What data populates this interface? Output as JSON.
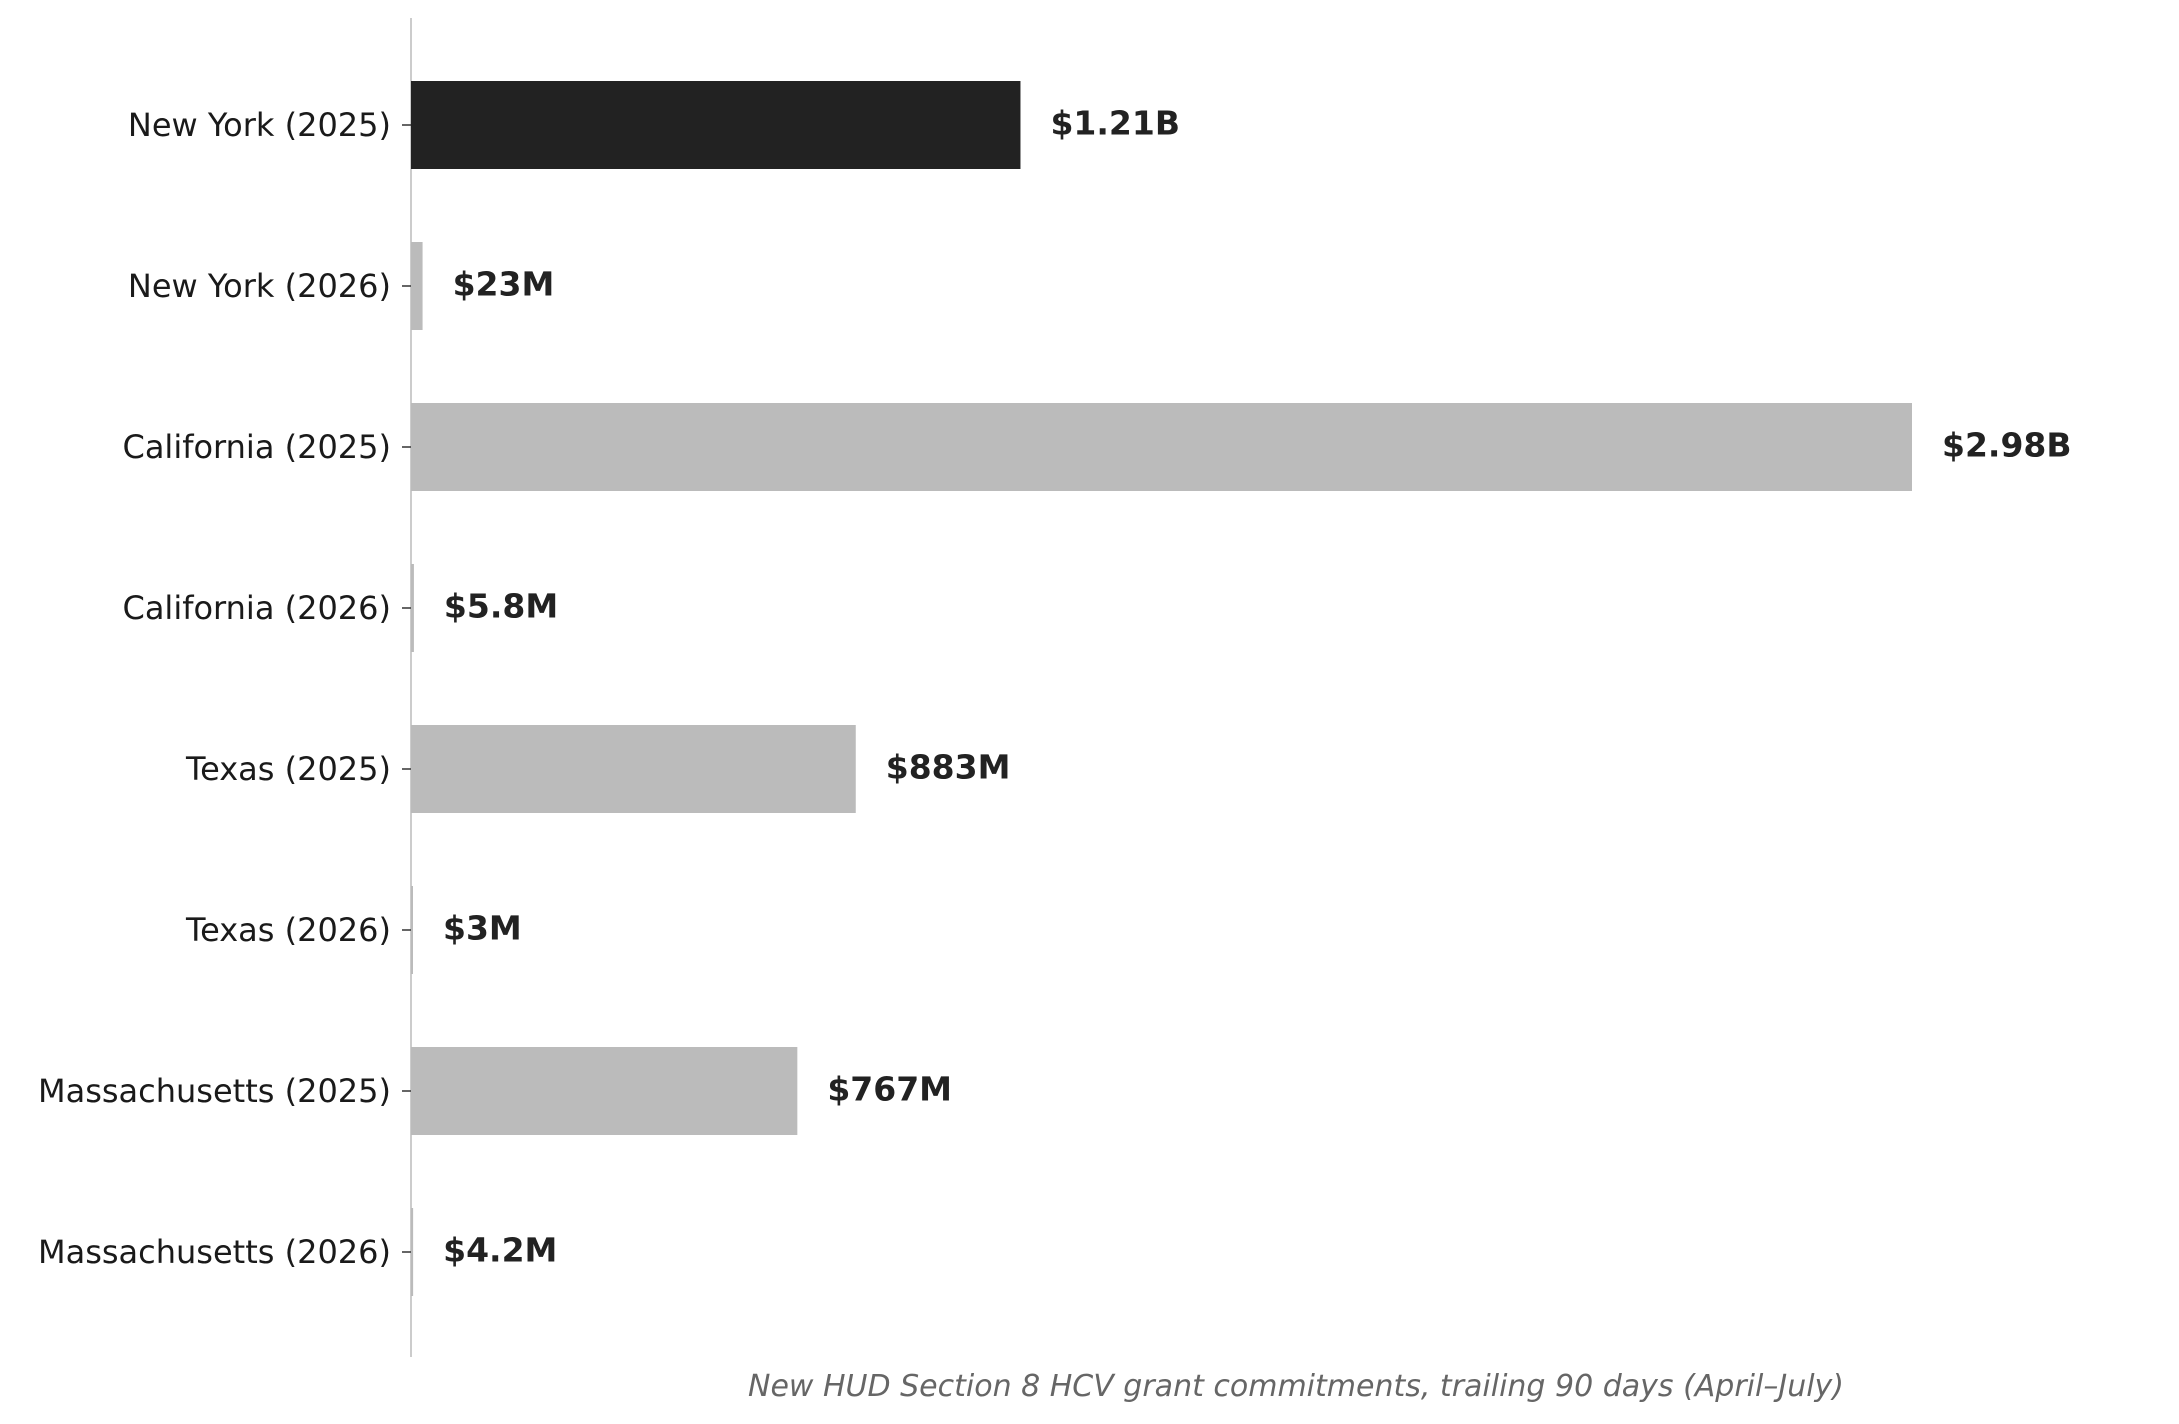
{
  "chart_data": {
    "type": "bar",
    "orientation": "horizontal",
    "categories": [
      "New York (2025)",
      "New York (2026)",
      "California (2025)",
      "California (2026)",
      "Texas (2025)",
      "Texas (2026)",
      "Massachusetts (2025)",
      "Massachusetts (2026)"
    ],
    "values": [
      1210000000,
      23000000,
      2980000000,
      5800000,
      883000000,
      3000000,
      767000000,
      4200000
    ],
    "value_labels": [
      "$1.21B",
      "$23M",
      "$2.98B",
      "$5.8M",
      "$883M",
      "$3M",
      "$767M",
      "$4.2M"
    ],
    "highlight_index": 0,
    "colors": {
      "highlight": "#222222",
      "default": "#bbbbbb",
      "value_label": "#222222",
      "caption": "#666666",
      "axis": "#cccccc"
    },
    "caption": "New HUD Section 8 HCV grant commitments, trailing 90 days (April–July)",
    "xlim": [
      0,
      2980000000
    ],
    "grid": false,
    "legend": "none"
  }
}
